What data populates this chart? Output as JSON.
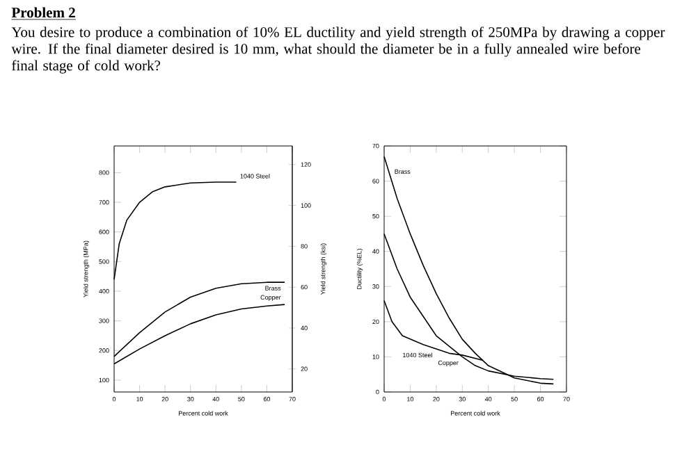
{
  "chart_data": [
    {
      "type": "line",
      "title": "Problem 2",
      "subtitle": "You desire to produce a combination of 10% EL ductility and yield strength of 250MPa by drawing a copper wire. If the final diameter desired is 10 mm, what should the diameter be in a fully annealed wire before final stage of cold work?",
      "xlabel": "Percent cold work",
      "ylabel": "Yield strength (MPa)",
      "y2label": "Yield strength (ksi)",
      "xlim": [
        0,
        70
      ],
      "xticks": [
        0,
        10,
        20,
        30,
        40,
        50,
        60,
        70
      ],
      "ylim": [
        60,
        890
      ],
      "yticks": [
        100,
        200,
        300,
        400,
        500,
        600,
        700,
        800
      ],
      "y2lim": [
        8.7,
        129.1
      ],
      "y2ticks": [
        20,
        40,
        60,
        80,
        100,
        120
      ],
      "legend": false,
      "grid": false,
      "series": [
        {
          "name": "1040 Steel",
          "color": "#000000",
          "x": [
            0,
            2,
            5,
            10,
            15,
            20,
            30,
            40,
            48
          ],
          "values": [
            440,
            560,
            640,
            700,
            735,
            752,
            765,
            768,
            768
          ]
        },
        {
          "name": "Brass",
          "color": "#000000",
          "x": [
            0,
            10,
            20,
            30,
            40,
            50,
            60,
            67
          ],
          "values": [
            180,
            260,
            330,
            380,
            410,
            425,
            430,
            430
          ]
        },
        {
          "name": "Copper",
          "color": "#000000",
          "x": [
            0,
            10,
            20,
            30,
            40,
            50,
            60,
            67
          ],
          "values": [
            155,
            205,
            250,
            290,
            320,
            340,
            350,
            355
          ]
        }
      ]
    },
    {
      "type": "line",
      "xlabel": "Percent cold work",
      "ylabel": "Ductility (%EL)",
      "xlim": [
        0,
        70
      ],
      "xticks": [
        0,
        10,
        20,
        30,
        40,
        50,
        60,
        70
      ],
      "ylim": [
        0,
        70
      ],
      "yticks": [
        0,
        10,
        20,
        30,
        40,
        50,
        60,
        70
      ],
      "legend": false,
      "grid": false,
      "series": [
        {
          "name": "Brass",
          "color": "#000000",
          "x": [
            0,
            5,
            10,
            15,
            20,
            25,
            30,
            35,
            40,
            50,
            60,
            65
          ],
          "values": [
            67,
            55,
            45,
            36,
            28,
            21,
            15,
            11,
            7.5,
            4,
            2.5,
            2.3
          ]
        },
        {
          "name": "Copper",
          "color": "#000000",
          "x": [
            0,
            5,
            10,
            20,
            30,
            35,
            40,
            50,
            60,
            65
          ],
          "values": [
            45,
            35,
            27,
            16,
            10,
            7.5,
            6,
            4.5,
            3.8,
            3.6
          ]
        },
        {
          "name": "1040 Steel",
          "color": "#000000",
          "x": [
            0,
            3,
            7,
            15,
            25,
            30,
            38
          ],
          "values": [
            26,
            20,
            16,
            13.5,
            11,
            10.5,
            9
          ]
        }
      ]
    }
  ]
}
